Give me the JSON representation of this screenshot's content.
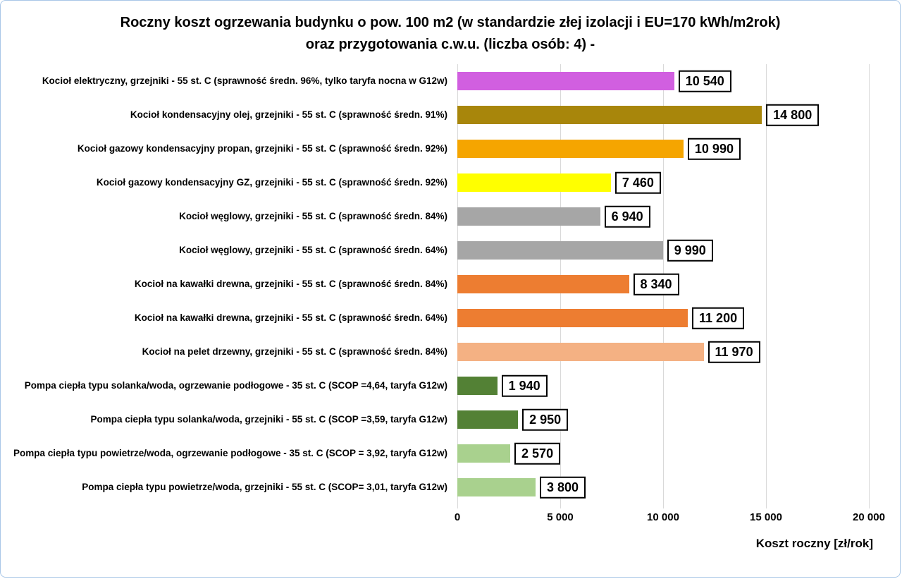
{
  "chart_data": {
    "type": "bar",
    "orientation": "horizontal",
    "title": "Roczny koszt  ogrzewania  budynku   o pow. 100 m2 (w standardzie  złej izolacji  i EU=170 kWh/m2rok)  oraz przygotowania   c.w.u. (liczba osób: 4) -",
    "xlabel": "Koszt roczny [zł/rok]",
    "xlim": [
      0,
      20000
    ],
    "xticks": [
      0,
      5000,
      10000,
      15000,
      20000
    ],
    "xtick_labels": [
      "0",
      "5 000",
      "10 000",
      "15 000",
      "20 000"
    ],
    "grid": true,
    "bars": [
      {
        "label": "Kocioł  elektryczny,  grzejniki - 55 st. C  (sprawność średn. 96%, tylko taryfa nocna w G12w)",
        "value": 10540,
        "value_label": "10 540",
        "color": "#d15fe0"
      },
      {
        "label": "Kocioł  kondensacyjny olej,  grzejniki - 55 st. C  (sprawność średn. 91%)",
        "value": 14800,
        "value_label": "14 800",
        "color": "#a8860b"
      },
      {
        "label": "Kocioł gazowy kondensacyjny propan,  grzejniki - 55 st. C  (sprawność średn. 92%)",
        "value": 10990,
        "value_label": "10 990",
        "color": "#f5a500"
      },
      {
        "label": "Kocioł gazowy kondensacyjny GZ, grzejniki - 55 st. C   (sprawność średn. 92%)",
        "value": 7460,
        "value_label": "7 460",
        "color": "#ffff00"
      },
      {
        "label": "Kocioł węglowy,  grzejniki - 55 st. C  (sprawność średn. 84%)",
        "value": 6940,
        "value_label": "6 940",
        "color": "#a6a6a6"
      },
      {
        "label": "Kocioł węglowy,  grzejniki - 55 st. C  (sprawność średn. 64%)",
        "value": 9990,
        "value_label": "9 990",
        "color": "#a6a6a6"
      },
      {
        "label": "Kocioł na kawałki drewna, grzejniki - 55 st. C (sprawność średn. 84%)",
        "value": 8340,
        "value_label": "8 340",
        "color": "#ed7d31"
      },
      {
        "label": "Kocioł na kawałki drewna, grzejniki - 55 st. C  (sprawność średn. 64%)",
        "value": 11200,
        "value_label": "11 200",
        "color": "#ed7d31"
      },
      {
        "label": "Kocioł na pelet drzewny, grzejniki - 55 st. C (sprawność średn. 84%)",
        "value": 11970,
        "value_label": "11 970",
        "color": "#f4b183"
      },
      {
        "label": "Pompa ciepła typu solanka/woda, ogrzewanie podłogowe - 35 st. C  (SCOP =4,64, taryfa G12w)",
        "value": 1940,
        "value_label": "1 940",
        "color": "#538135"
      },
      {
        "label": "Pompa ciepła typu solanka/woda, grzejniki - 55 st. C (SCOP =3,59, taryfa G12w)",
        "value": 2950,
        "value_label": "2 950",
        "color": "#538135"
      },
      {
        "label": "Pompa ciepła typu powietrze/woda, ogrzewanie podłogowe - 35 st. C (SCOP = 3,92, taryfa G12w)",
        "value": 2570,
        "value_label": "2 570",
        "color": "#a9d18e"
      },
      {
        "label": "Pompa ciepła typu powietrze/woda, grzejniki - 55 st. C (SCOP= 3,01, taryfa G12w)",
        "value": 3800,
        "value_label": "3 800",
        "color": "#a9d18e"
      }
    ]
  }
}
